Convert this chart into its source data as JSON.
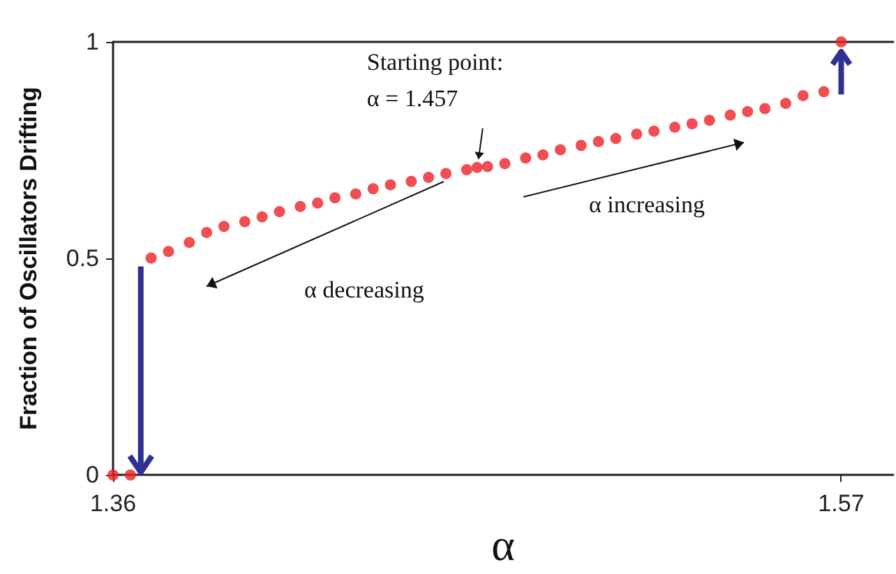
{
  "chart_data": {
    "type": "scatter",
    "xlabel": "α",
    "ylabel": "Fraction of Oscillators Drifting",
    "x": [
      1.36,
      1.365,
      1.371,
      1.376,
      1.382,
      1.387,
      1.392,
      1.398,
      1.403,
      1.408,
      1.414,
      1.419,
      1.424,
      1.43,
      1.435,
      1.44,
      1.446,
      1.451,
      1.456,
      1.462,
      1.465,
      1.468,
      1.473,
      1.479,
      1.484,
      1.489,
      1.495,
      1.5,
      1.505,
      1.511,
      1.516,
      1.522,
      1.527,
      1.532,
      1.538,
      1.543,
      1.548,
      1.554,
      1.559,
      1.565,
      1.57
    ],
    "series": [
      {
        "color": "#ec2227",
        "values": [
          0,
          0,
          0.501,
          0.516,
          0.537,
          0.56,
          0.574,
          0.585,
          0.596,
          0.608,
          0.62,
          0.628,
          0.64,
          0.649,
          0.661,
          0.67,
          0.678,
          0.687,
          0.696,
          0.705,
          0.71,
          0.712,
          0.719,
          0.732,
          0.739,
          0.751,
          0.761,
          0.77,
          0.777,
          0.787,
          0.794,
          0.803,
          0.811,
          0.819,
          0.831,
          0.839,
          0.846,
          0.858,
          0.876,
          0.885,
          1.0
        ]
      }
    ],
    "xlim": [
      1.36,
      1.585
    ],
    "xticks": [
      1.36,
      1.57
    ],
    "ylim": [
      0,
      1
    ],
    "yticks": [
      0,
      0.5,
      1
    ],
    "grid": false,
    "marker": "circle",
    "annotations": [
      {
        "text": "Starting point:\nα = 1.457",
        "x": 1.465,
        "y": 0.71
      },
      "α increasing",
      "α decreasing"
    ]
  }
}
